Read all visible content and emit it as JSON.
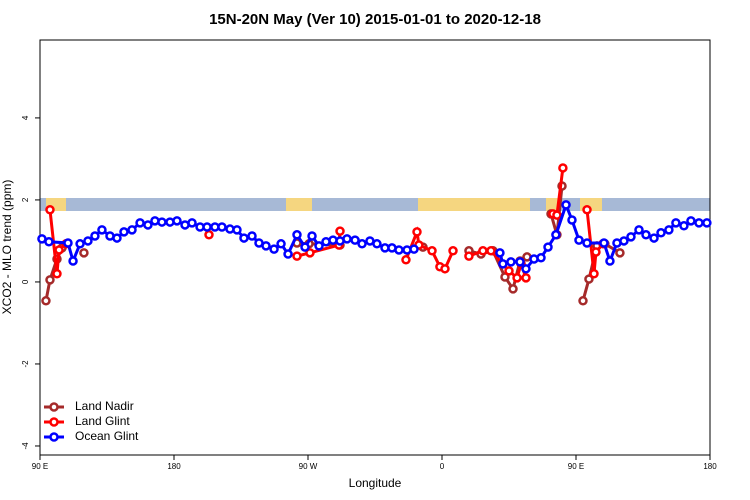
{
  "chart_data": {
    "type": "line",
    "title": "15N-20N May (Ver 10)   2015-01-01 to 2020-12-18",
    "x_label": "Longitude",
    "y_label": "XCO2 - MLO trend (ppm)",
    "xlim": [
      90,
      540
    ],
    "ylim": [
      -4.22,
      5.9
    ],
    "xticks": [
      {
        "value": 90,
        "label": "90 E"
      },
      180,
      {
        "value": 270,
        "label": "90 W"
      },
      {
        "value": 360,
        "label": "0"
      },
      {
        "value": 450,
        "label": "90 E"
      },
      {
        "value": 540,
        "label": "180"
      }
    ],
    "yticks": [
      -4,
      -2,
      0,
      2,
      4
    ],
    "legend": "bottom-left",
    "series": [
      {
        "name": "Land Nadir",
        "color": "#a52a2a",
        "x": [
          94,
          96.7,
          101.4,
          104.8,
          null,
          119.5,
          null,
          262.6,
          270.7,
          291.5,
          null,
          347.2,
          null,
          378.1,
          386.2,
          394.2,
          402.3,
          407.7,
          412.4,
          417.1,
          null,
          433.2,
          437.2,
          440.6,
          null,
          454.7,
          458.7,
          464.1,
          469.4,
          479.5
        ],
        "values": [
          -0.46,
          0.05,
          0.56,
          0.83,
          null,
          0.71,
          null,
          0.95,
          0.93,
          0.9,
          null,
          0.85,
          null,
          0.76,
          0.68,
          0.76,
          0.12,
          -0.17,
          0.51,
          0.61,
          null,
          1.66,
          1.15,
          2.34,
          null,
          -0.46,
          0.07,
          0.88,
          0.93,
          0.71
        ]
      },
      {
        "name": "Land Glint",
        "color": "#ff0000",
        "x": [
          96.7,
          101.4,
          102.8,
          107.5,
          null,
          203.5,
          null,
          262.6,
          271.3,
          290.8,
          291.5,
          null,
          335.8,
          343.2,
          344.5,
          353.3,
          358.6,
          362,
          367.4,
          null,
          378.1,
          387.5,
          392.9,
          405,
          410.4,
          413.1,
          416.4,
          null,
          434.5,
          437.2,
          441.2,
          null,
          457.4,
          462.1,
          463.4,
          468.1
        ],
        "values": [
          1.76,
          0.2,
          0.78,
          0.93,
          null,
          1.15,
          null,
          0.63,
          0.71,
          0.9,
          1.24,
          null,
          0.54,
          1.22,
          0.9,
          0.76,
          0.37,
          0.32,
          0.76,
          null,
          0.63,
          0.76,
          0.76,
          0.27,
          0.1,
          0.44,
          0.1,
          null,
          1.66,
          1.63,
          2.78,
          null,
          1.76,
          0.2,
          0.73,
          0.93
        ]
      },
      {
        "name": "Ocean Glint",
        "color": "#0000ff",
        "x": [
          91.3,
          96,
          108.8,
          112.2,
          116.9,
          122.2,
          126.9,
          131.6,
          137,
          141.7,
          146.4,
          151.8,
          157.2,
          162.5,
          167.2,
          171.9,
          177.3,
          182,
          187.4,
          192.1,
          197.5,
          202.2,
          207.5,
          212.2,
          217.6,
          222.3,
          227,
          232.4,
          237.1,
          241.8,
          247.2,
          251.9,
          256.6,
          262.6,
          268,
          272.7,
          277.4,
          282.1,
          286.8,
          291.5,
          296.2,
          301.6,
          306.3,
          311.6,
          316.3,
          321.7,
          326.4,
          331.1,
          336.5,
          341.2,
          null,
          398.9,
          400.9,
          406.3,
          412.4,
          416.4,
          421.8,
          426.5,
          431.2,
          436.5,
          443.3,
          447.3,
          452,
          457.4,
          468.8,
          472.8,
          477.5,
          482.2,
          486.9,
          492.3,
          497,
          502.4,
          507.1,
          512.4,
          517.1,
          522.5,
          527.2,
          532.6,
          537.9
        ],
        "values": [
          1.05,
          0.98,
          0.95,
          0.51,
          0.93,
          1.0,
          1.12,
          1.27,
          1.12,
          1.07,
          1.22,
          1.27,
          1.44,
          1.39,
          1.49,
          1.46,
          1.46,
          1.49,
          1.39,
          1.44,
          1.34,
          1.34,
          1.34,
          1.34,
          1.29,
          1.27,
          1.07,
          1.12,
          0.95,
          0.88,
          0.8,
          0.93,
          0.68,
          1.15,
          0.85,
          1.12,
          0.88,
          0.98,
          1.02,
          1.0,
          1.05,
          1.02,
          0.93,
          1.0,
          0.93,
          0.83,
          0.83,
          0.78,
          0.78,
          0.8,
          null,
          0.71,
          0.44,
          0.49,
          0.49,
          0.32,
          0.56,
          0.59,
          0.85,
          1.15,
          1.88,
          1.51,
          1.02,
          0.95,
          0.95,
          0.51,
          0.95,
          1.0,
          1.1,
          1.27,
          1.15,
          1.07,
          1.2,
          1.27,
          1.44,
          1.37,
          1.49,
          1.44,
          1.44
        ]
      }
    ]
  }
}
